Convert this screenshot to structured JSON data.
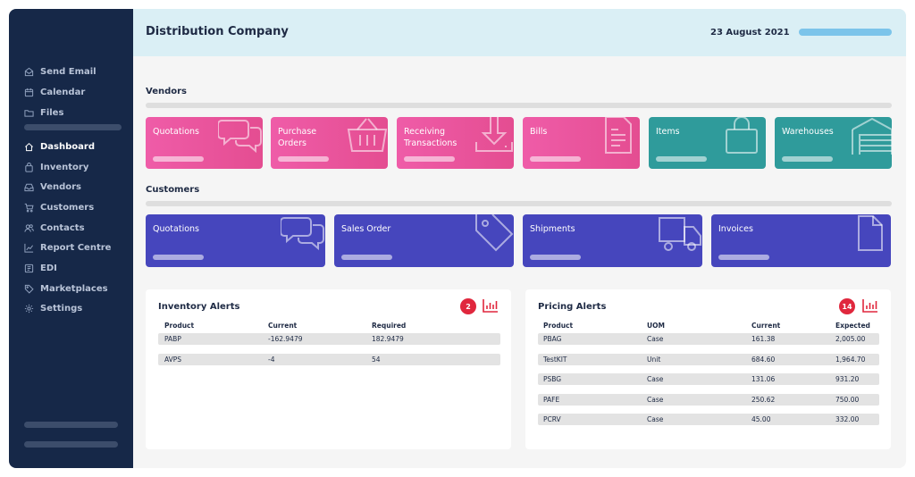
{
  "sidebar": {
    "items": [
      {
        "label": "Send Email",
        "icon": "email-icon"
      },
      {
        "label": "Calendar",
        "icon": "calendar-icon"
      },
      {
        "label": "Files",
        "icon": "folder-icon"
      },
      {
        "label": "Dashboard",
        "icon": "home-icon",
        "active": true
      },
      {
        "label": "Inventory",
        "icon": "bag-icon"
      },
      {
        "label": "Vendors",
        "icon": "inbox-icon"
      },
      {
        "label": "Customers",
        "icon": "cart-icon"
      },
      {
        "label": "Contacts",
        "icon": "people-icon"
      },
      {
        "label": "Report Centre",
        "icon": "chart-icon"
      },
      {
        "label": "EDI",
        "icon": "edi-icon"
      },
      {
        "label": "Marketplaces",
        "icon": "tag-icon"
      },
      {
        "label": "Settings",
        "icon": "gear-icon"
      }
    ]
  },
  "header": {
    "title": "Distribution Company",
    "date": "23 August 2021"
  },
  "vendors": {
    "heading": "Vendors",
    "tiles": [
      {
        "label": "Quotations",
        "icon": "chat-bubbles-icon"
      },
      {
        "label": "Purchase\nOrders",
        "icon": "basket-icon"
      },
      {
        "label": "Receiving\nTransactions",
        "icon": "download-tray-icon"
      },
      {
        "label": "Bills",
        "icon": "document-icon"
      },
      {
        "label": "Items",
        "icon": "shopping-bag-icon"
      },
      {
        "label": "Warehouses",
        "icon": "warehouse-icon"
      }
    ]
  },
  "customers": {
    "heading": "Customers",
    "tiles": [
      {
        "label": "Quotations",
        "icon": "chat-bubbles-icon"
      },
      {
        "label": "Sales Order",
        "icon": "tag-icon"
      },
      {
        "label": "Shipments",
        "icon": "truck-icon"
      },
      {
        "label": "Invoices",
        "icon": "file-icon"
      }
    ]
  },
  "inventory_alerts": {
    "title": "Inventory Alerts",
    "count": "2",
    "columns": [
      "Product",
      "Current",
      "Required"
    ],
    "rows": [
      [
        "PABP",
        "-162.9479",
        "182.9479"
      ],
      [
        "AVPS",
        "-4",
        "54"
      ]
    ]
  },
  "pricing_alerts": {
    "title": "Pricing Alerts",
    "count": "14",
    "columns": [
      "Product",
      "UOM",
      "Current",
      "Expected"
    ],
    "rows": [
      [
        "PBAG",
        "Case",
        "161.38",
        "2,005.00"
      ],
      [
        "TestKIT",
        "Unit",
        "684.60",
        "1,964.70"
      ],
      [
        "PSBG",
        "Case",
        "131.06",
        "931.20"
      ],
      [
        "PAFE",
        "Case",
        "250.62",
        "750.00"
      ],
      [
        "PCRV",
        "Case",
        "45.00",
        "332.00"
      ]
    ]
  },
  "colors": {
    "sidebar": "#162848",
    "header": "#daeff5",
    "vendor_pink": "#e8519b",
    "vendor_teal": "#2f9b9b",
    "customer_blue": "#4646bd",
    "alert_red": "#e0273d"
  }
}
